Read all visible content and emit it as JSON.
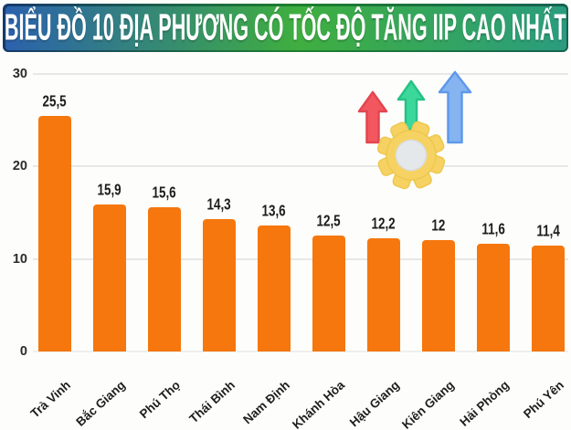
{
  "header": {
    "title": "BIỂU ĐỒ 10 ĐỊA PHƯƠNG CÓ TỐC ĐỘ TĂNG IIP CAO NHẤT"
  },
  "chart_data": {
    "type": "bar",
    "title": "BIỂU ĐỒ 10 ĐỊA PHƯƠNG CÓ TỐC ĐỘ TĂNG IIP CAO NHẤT",
    "categories": [
      "Trà Vinh",
      "Bắc Giang",
      "Phú Thọ",
      "Thái Bình",
      "Nam Định",
      "Khánh Hòa",
      "Hậu Giang",
      "Kiên Giang",
      "Hải Phòng",
      "Phú Yên"
    ],
    "values": [
      25.5,
      15.9,
      15.6,
      14.3,
      13.6,
      12.5,
      12.2,
      12,
      11.6,
      11.4
    ],
    "value_labels": [
      "25,5",
      "15,9",
      "15,6",
      "14,3",
      "13,6",
      "12,5",
      "12,2",
      "12",
      "11,6",
      "11,4"
    ],
    "xlabel": "",
    "ylabel": "",
    "ylim": [
      0,
      30
    ],
    "yticks": [
      30,
      20,
      10,
      0
    ],
    "grid": true,
    "legend": false,
    "bar_color": "#F5770E"
  },
  "decoration": {
    "arrows": [
      {
        "name": "red",
        "fill": "#F2565E",
        "border": "#E24650"
      },
      {
        "name": "green",
        "fill": "#3BD79B",
        "border": "#27C186"
      },
      {
        "name": "blue",
        "fill": "#85B4F1",
        "border": "#5E99E9"
      }
    ],
    "gear": {
      "fill": "#F6D263",
      "border": "#EEC84F",
      "hole": "#E5E8EA",
      "hole_border": "#D9DDE0"
    }
  },
  "colors": {
    "background": "#FDFDFB",
    "header_gradient_left": "#2B61AD",
    "header_gradient_mid": "#3FAE3F",
    "header_gradient_right": "#2A9C7E",
    "header_border_left": "#16396C",
    "header_border_mid": "#1E7F2E",
    "header_border_right": "#156253",
    "grid": "#E7E7E7",
    "text": "#1E1E1E"
  }
}
